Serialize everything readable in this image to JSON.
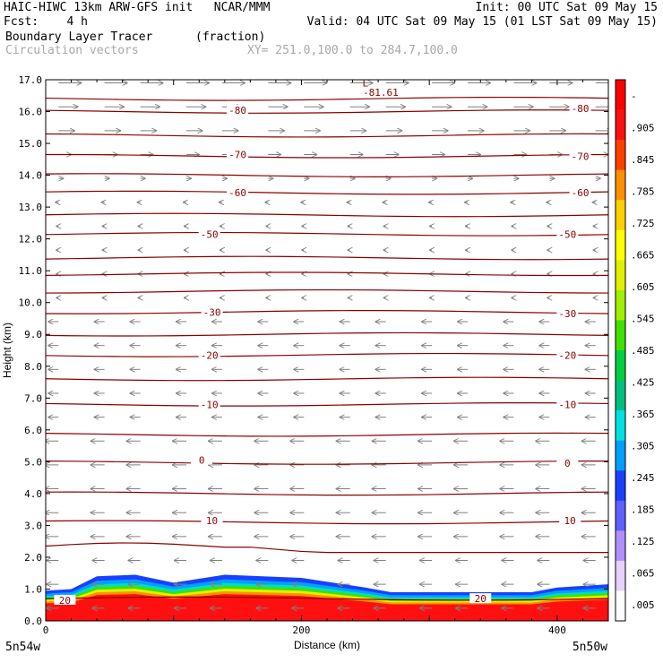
{
  "header": {
    "line1_left": "HAIC-HIWC 13km ARW-GFS init   NCAR/MMM",
    "line1_right": "Init: 00 UTC Sat 09 May 15",
    "line2_left": "Fcst:    4 h",
    "line2_right": "Valid: 04 UTC Sat 09 May 15 (01 LST Sat 09 May 15)",
    "line3_left": "Boundary Layer Tracer",
    "line3_unit": "(fraction)",
    "line4_left": "Circulation vectors",
    "line4_right": "XY= 251.0,100.0 to 284.7,100.0"
  },
  "footer": {
    "left_label": "5n54w",
    "right_label": "5n50w"
  },
  "chart_data": {
    "type": "heatmap",
    "xlabel": "Distance (km)",
    "ylabel": "Height (km)",
    "xlim": [
      0,
      440
    ],
    "ylim": [
      0,
      17
    ],
    "xticks": [
      0,
      200,
      400
    ],
    "yticks": [
      0.0,
      1.0,
      2.0,
      3.0,
      4.0,
      5.0,
      6.0,
      7.0,
      8.0,
      9.0,
      10.0,
      11.0,
      12.0,
      13.0,
      14.0,
      15.0,
      16.0,
      17.0
    ],
    "colorbar_labels": [
      ".005",
      ".065",
      ".125",
      ".185",
      ".245",
      ".305",
      ".365",
      ".425",
      ".485",
      ".545",
      ".605",
      ".665",
      ".725",
      ".785",
      ".845",
      ".905",
      "-"
    ],
    "colorbar_colors": [
      "#ffffff",
      "#e8d0ff",
      "#b090ff",
      "#6060ff",
      "#1a40ff",
      "#00a0ff",
      "#00e0e0",
      "#00c080",
      "#00d040",
      "#40e000",
      "#a0f000",
      "#e0f000",
      "#ffff00",
      "#ffd000",
      "#ff9000",
      "#ff4000",
      "#ff1010",
      "#ff0000"
    ],
    "contour_color": "#8b0000",
    "isotherm_labels": [
      {
        "value": "20",
        "x": 15,
        "y": 0.65
      },
      {
        "value": "20",
        "x": 340,
        "y": 0.7
      },
      {
        "value": "10",
        "x": 130,
        "y": 3.15
      },
      {
        "value": "10",
        "x": 410,
        "y": 3.15
      },
      {
        "value": "0",
        "x": 122,
        "y": 5.05
      },
      {
        "value": "0",
        "x": 408,
        "y": 4.95
      },
      {
        "value": "-10",
        "x": 128,
        "y": 6.8
      },
      {
        "value": "-10",
        "x": 408,
        "y": 6.8
      },
      {
        "value": "-20",
        "x": 128,
        "y": 8.35
      },
      {
        "value": "-20",
        "x": 408,
        "y": 8.35
      },
      {
        "value": "-30",
        "x": 130,
        "y": 9.7
      },
      {
        "value": "-30",
        "x": 408,
        "y": 9.65
      },
      {
        "value": "-50",
        "x": 128,
        "y": 12.15
      },
      {
        "value": "-50",
        "x": 408,
        "y": 12.15
      },
      {
        "value": "-60",
        "x": 150,
        "y": 13.45
      },
      {
        "value": "-60",
        "x": 418,
        "y": 13.45
      },
      {
        "value": "-70",
        "x": 150,
        "y": 14.65
      },
      {
        "value": "-70",
        "x": 418,
        "y": 14.6
      },
      {
        "value": "-80",
        "x": 150,
        "y": 16.05
      },
      {
        "value": "-80",
        "x": 418,
        "y": 16.1
      },
      {
        "value": "-81.61",
        "x": 262,
        "y": 16.6
      }
    ],
    "isotherm_min_marker": {
      "label": "L",
      "x": 250,
      "y": 16.9
    }
  }
}
